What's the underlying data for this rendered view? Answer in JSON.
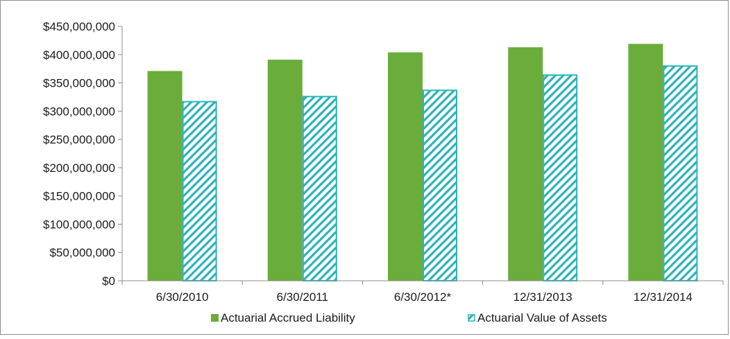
{
  "chart_data": {
    "type": "bar",
    "title": "",
    "xlabel": "",
    "ylabel": "",
    "categories": [
      "6/30/2010",
      "6/30/2011",
      "6/30/2012*",
      "12/31/2013",
      "12/31/2014"
    ],
    "series": [
      {
        "name": "Actuarial Accrued Liability",
        "values": [
          371000000,
          391000000,
          404000000,
          413000000,
          419000000
        ],
        "color": "#6aad3b",
        "pattern": "solid"
      },
      {
        "name": "Actuarial Value of Assets",
        "values": [
          318000000,
          327000000,
          338000000,
          365000000,
          381000000
        ],
        "color": "#2ab3b8",
        "pattern": "diagonal-hatch"
      }
    ],
    "ylim": [
      0,
      450000000
    ],
    "yticks": [
      0,
      50000000,
      100000000,
      150000000,
      200000000,
      250000000,
      300000000,
      350000000,
      400000000,
      450000000
    ],
    "ytick_labels": [
      "$0",
      "$50,000,000",
      "$100,000,000",
      "$150,000,000",
      "$200,000,000",
      "$250,000,000",
      "$300,000,000",
      "$350,000,000",
      "$400,000,000",
      "$450,000,000"
    ],
    "grid": false,
    "legend_position": "bottom"
  }
}
